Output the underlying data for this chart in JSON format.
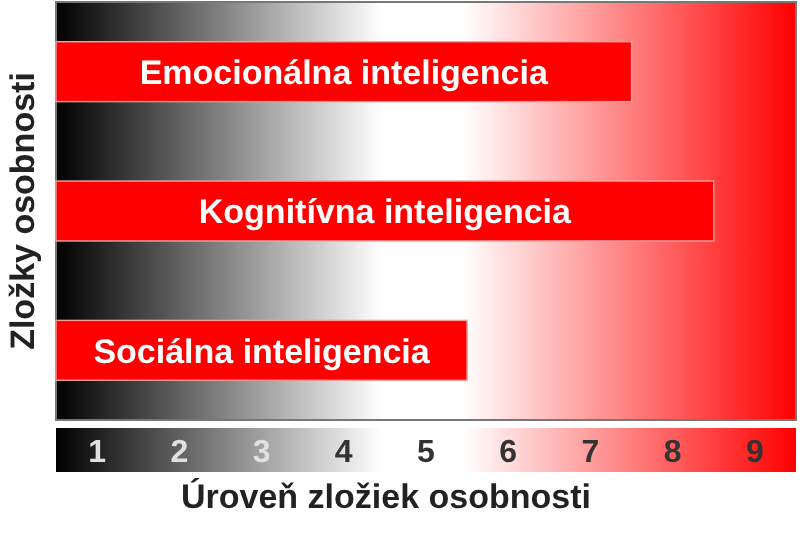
{
  "chart_data": {
    "type": "bar",
    "orientation": "horizontal",
    "xlabel": "Úroveň zložiek osobnosti",
    "ylabel": "Zložky osobnosti",
    "categories": [
      "Emocionálna inteligencia",
      "Kognitívna inteligencia",
      "Sociálna inteligencia"
    ],
    "values": [
      7.5,
      8.5,
      5.5
    ],
    "color": "#ff0000",
    "xlim": [
      0.5,
      9.5
    ],
    "xticks": [
      1,
      2,
      3,
      4,
      5,
      6,
      7,
      8,
      9
    ],
    "tick_labels": "x",
    "grid": false
  }
}
